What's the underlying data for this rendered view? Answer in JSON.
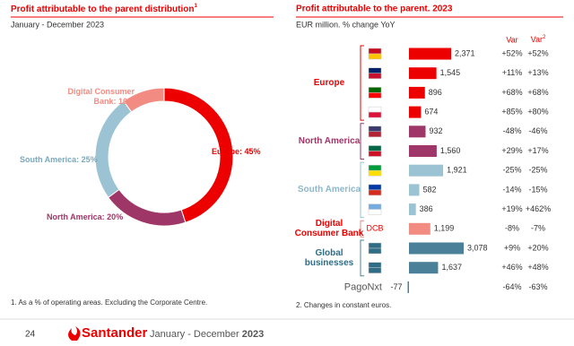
{
  "chart_data": [
    {
      "type": "pie",
      "title": "Profit attributable to the parent distribution",
      "title_note": "1",
      "subtitle": "January - December 2023",
      "values": [
        45,
        20,
        25,
        10
      ],
      "value_labels": [
        "Europe: 45%",
        "North America: 20%",
        "South America: 25%",
        "Digital Consumer Bank: 10%"
      ],
      "colors": [
        "#ec0000",
        "#9e3667",
        "#9bc3d3",
        "#f28b82"
      ],
      "footnote": "1. As a % of operating areas. Excluding the Corporate Centre."
    },
    {
      "type": "bar",
      "title": "Profit attributable to the parent. 2023",
      "subtitle": "EUR million. % change YoY",
      "var_header": "Var",
      "var2_header": "Var",
      "var2_note": "2",
      "groups": [
        {
          "name": "Europe",
          "color": "#ec0000",
          "label_color": "#ec0000",
          "categories": [
            null,
            null,
            null,
            null
          ],
          "values": [
            2371,
            1545,
            896,
            674
          ],
          "value_labels": [
            "2,371",
            "1,545",
            "896",
            "674"
          ],
          "var": [
            "+52%",
            "+11%",
            "+68%",
            "+85%"
          ],
          "var2": [
            "+52%",
            "+13%",
            "+68%",
            "+80%"
          ]
        },
        {
          "name": "North America",
          "color": "#9e3667",
          "label_color": "#9e3667",
          "categories": [
            null,
            null
          ],
          "values": [
            932,
            1560
          ],
          "value_labels": [
            "932",
            "1,560"
          ],
          "var": [
            "-48%",
            "+29%"
          ],
          "var2": [
            "-46%",
            "+17%"
          ]
        },
        {
          "name": "South America",
          "color": "#9bc3d3",
          "label_color": "#8ab8cc",
          "categories": [
            null,
            null,
            null
          ],
          "values": [
            1921,
            582,
            386
          ],
          "value_labels": [
            "1,921",
            "582",
            "386"
          ],
          "var": [
            "-25%",
            "-14%",
            "+19%"
          ],
          "var2": [
            "-25%",
            "-15%",
            "+462%"
          ]
        },
        {
          "name": "Digital Consumer Bank",
          "color": "#f28b82",
          "label_color": "#ec0000",
          "categories": [
            "DCB"
          ],
          "values": [
            1199
          ],
          "value_labels": [
            "1,199"
          ],
          "var": [
            "-8%"
          ],
          "var2": [
            "-7%"
          ]
        },
        {
          "name": "Global businesses",
          "color": "#4a8198",
          "label_color": "#2e6d85",
          "categories": [
            null,
            null
          ],
          "values": [
            3078,
            1637
          ],
          "value_labels": [
            "3,078",
            "1,637"
          ],
          "var": [
            "+9%",
            "+46%"
          ],
          "var2": [
            "+20%",
            "+48%"
          ]
        },
        {
          "name": "PagoNxt",
          "color": "#4a8198",
          "label_color": "#555555",
          "categories": [
            null
          ],
          "values": [
            -77
          ],
          "value_labels": [
            "-77"
          ],
          "var": [
            "-64%"
          ],
          "var2": [
            "-63%"
          ]
        }
      ],
      "footnote": "2. Changes in constant euros."
    }
  ],
  "footer": {
    "page": "24",
    "brand": "Santander",
    "period": "January - December",
    "year": "2023"
  }
}
